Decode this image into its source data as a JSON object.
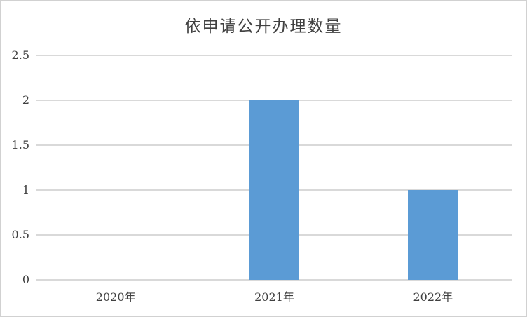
{
  "chart_data": {
    "type": "bar",
    "title": "依申请公开办理数量",
    "categories": [
      "2020年",
      "2021年",
      "2022年"
    ],
    "values": [
      0,
      2,
      1
    ],
    "series": [
      {
        "name": "依申请公开办理数量",
        "values": [
          0,
          2,
          1
        ]
      }
    ],
    "xlabel": "",
    "ylabel": "",
    "ylim": [
      0,
      2.5
    ],
    "ytick_step": 0.5,
    "ytick_labels": [
      "0",
      "0.5",
      "1",
      "1.5",
      "2",
      "2.5"
    ],
    "grid": "horizontal",
    "legend": "none",
    "bar_color": "#5b9bd5",
    "gridline_color": "#d9d9d9",
    "text_color": "#404040",
    "frame_border_color": "#d1d1d1"
  },
  "layout_note": "no legend, no data labels, bars on 2021 and 2022 only"
}
